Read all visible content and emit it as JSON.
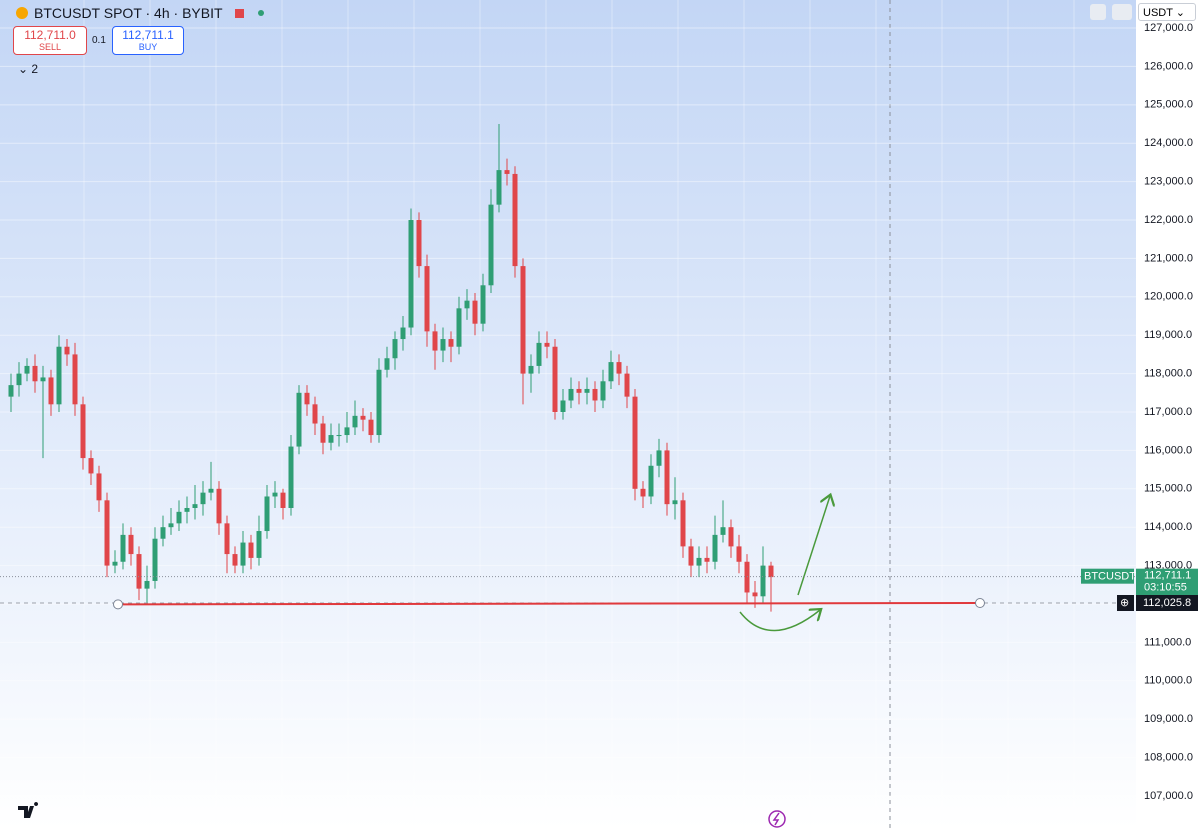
{
  "toolbar": {
    "symbol": "BTCUSDT SPOT · 4h · BYBIT",
    "sell_price": "112,711.0",
    "sell": "SELL",
    "spread": "0.1",
    "buy_price": "112,711.1",
    "buy": "BUY",
    "indicators": "2",
    "currency": "USDT"
  },
  "chart_data": {
    "type": "candlestick",
    "up_color": "#2f9e74",
    "down_color": "#e0464a",
    "ylim": [
      106140,
      127730
    ],
    "yticks": [
      {
        "value": 107000,
        "label": "107,000.0"
      },
      {
        "value": 108000,
        "label": "108,000.0"
      },
      {
        "value": 109000,
        "label": "109,000.0"
      },
      {
        "value": 110000,
        "label": "110,000.0"
      },
      {
        "value": 111000,
        "label": "111,000.0"
      },
      {
        "value": 112000,
        "label": "112,000.0"
      },
      {
        "value": 113000,
        "label": "113,000.0"
      },
      {
        "value": 114000,
        "label": "114,000.0"
      },
      {
        "value": 115000,
        "label": "115,000.0"
      },
      {
        "value": 116000,
        "label": "116,000.0"
      },
      {
        "value": 117000,
        "label": "117,000.0"
      },
      {
        "value": 118000,
        "label": "118,000.0"
      },
      {
        "value": 119000,
        "label": "119,000.0"
      },
      {
        "value": 120000,
        "label": "120,000.0"
      },
      {
        "value": 121000,
        "label": "121,000.0"
      },
      {
        "value": 122000,
        "label": "122,000.0"
      },
      {
        "value": 123000,
        "label": "123,000.0"
      },
      {
        "value": 124000,
        "label": "124,000.0"
      },
      {
        "value": 125000,
        "label": "125,000.0"
      },
      {
        "value": 126000,
        "label": "126,000.0"
      },
      {
        "value": 127000,
        "label": "127,000.0"
      }
    ],
    "open": [
      117400,
      117700,
      118000,
      118200,
      117800,
      117900,
      117200,
      118700,
      118500,
      117200,
      115800,
      115400,
      114700,
      113000,
      113100,
      113800,
      113300,
      112400,
      112600,
      113700,
      114000,
      114100,
      114400,
      114500,
      114600,
      114900,
      115000,
      114100,
      113300,
      113000,
      113600,
      113200,
      113900,
      114800,
      114900,
      114500,
      116100,
      117500,
      117200,
      116700,
      116200,
      116400,
      116400,
      116600,
      116900,
      116800,
      116400,
      118100,
      118400,
      118900,
      119200,
      122000,
      120800,
      119100,
      118600,
      118900,
      118700,
      119700,
      119900,
      119300,
      120300,
      122400,
      123300,
      123200,
      120800,
      118000,
      118200,
      118800,
      118700,
      117000,
      117300,
      117600,
      117500,
      117600,
      117300,
      117800,
      118300,
      118000,
      117400,
      115000,
      114800,
      115600,
      116000,
      114600,
      114700,
      113500,
      113000,
      113200,
      113100,
      113800,
      114000,
      113500,
      113100,
      112300,
      112200,
      113000
    ],
    "high": [
      118000,
      118300,
      118400,
      118500,
      118200,
      118100,
      119000,
      118900,
      118800,
      117400,
      116000,
      115600,
      114900,
      113400,
      114100,
      114000,
      113500,
      113000,
      114000,
      114300,
      114500,
      114700,
      114800,
      115100,
      115200,
      115700,
      115200,
      114300,
      113500,
      113900,
      113800,
      114300,
      115100,
      115200,
      115000,
      116400,
      117700,
      117700,
      117400,
      116900,
      116700,
      116700,
      117000,
      117300,
      117100,
      117000,
      118400,
      118700,
      119100,
      119500,
      122300,
      122200,
      121100,
      119300,
      119200,
      119100,
      120000,
      120200,
      120100,
      120600,
      122800,
      124500,
      123600,
      123400,
      121000,
      118500,
      119100,
      119100,
      118900,
      117600,
      117900,
      117800,
      117900,
      117800,
      118100,
      118600,
      118500,
      118200,
      117600,
      115200,
      115900,
      116300,
      116200,
      115300,
      114900,
      113700,
      113500,
      113500,
      114300,
      114700,
      114200,
      113800,
      113300,
      112600,
      113500,
      113100
    ],
    "low": [
      117000,
      117400,
      117800,
      117500,
      115800,
      116900,
      117000,
      118200,
      116900,
      115500,
      115100,
      114400,
      112700,
      112800,
      112900,
      113000,
      112100,
      112000,
      112400,
      113500,
      113800,
      113900,
      114100,
      114200,
      114300,
      114700,
      113800,
      112800,
      112800,
      112800,
      112900,
      113000,
      113700,
      114500,
      114200,
      114300,
      115900,
      116900,
      116400,
      115900,
      116000,
      116100,
      116200,
      116400,
      116500,
      116200,
      116200,
      117900,
      118100,
      118600,
      119000,
      120500,
      118700,
      118100,
      118300,
      118300,
      118500,
      119400,
      119000,
      119100,
      120100,
      122200,
      122900,
      120500,
      117200,
      117500,
      118000,
      118400,
      116800,
      116800,
      117100,
      117200,
      117200,
      117000,
      117100,
      117600,
      117700,
      117100,
      114700,
      114500,
      114600,
      115300,
      114300,
      114200,
      113200,
      112700,
      112700,
      112800,
      112900,
      113600,
      113200,
      112800,
      112000,
      111900,
      112000,
      111800
    ],
    "close": [
      117700,
      118000,
      118200,
      117800,
      117900,
      117200,
      118700,
      118500,
      117200,
      115800,
      115400,
      114700,
      113000,
      113100,
      113800,
      113300,
      112400,
      112600,
      113700,
      114000,
      114100,
      114400,
      114500,
      114600,
      114900,
      115000,
      114100,
      113300,
      113000,
      113600,
      113200,
      113900,
      114800,
      114900,
      114500,
      116100,
      117500,
      117200,
      116700,
      116200,
      116400,
      116400,
      116600,
      116900,
      116800,
      116400,
      118100,
      118400,
      118900,
      119200,
      122000,
      120800,
      119100,
      118600,
      118900,
      118700,
      119700,
      119900,
      119300,
      120300,
      122400,
      123300,
      123200,
      120800,
      118000,
      118200,
      118800,
      118700,
      117000,
      117300,
      117600,
      117500,
      117600,
      117300,
      117800,
      118300,
      118000,
      117400,
      115000,
      114800,
      115600,
      116000,
      114600,
      114700,
      113500,
      113000,
      113200,
      113100,
      113800,
      114000,
      113500,
      113100,
      112300,
      112200,
      113000,
      112700
    ],
    "last_price": {
      "value": 112711.1,
      "label": "112,711.1"
    },
    "ticker_label": "BTCUSDT",
    "countdown": "03:10:55",
    "alert_price": {
      "value": 112025.8,
      "label": "112,025.8"
    },
    "support_line": {
      "color": "#e0393c",
      "values": [
        111990,
        112025.8
      ]
    }
  }
}
